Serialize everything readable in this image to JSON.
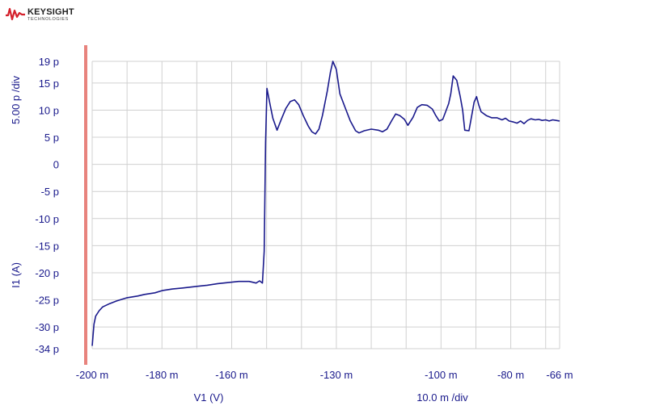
{
  "brand": {
    "name": "KEYSIGHT",
    "sub": "TECHNOLOGIES"
  },
  "chart_data": {
    "type": "line",
    "xlabel": "V1 (V)",
    "ylabel": "I1 (A)",
    "x_division": "10.0 m /div",
    "y_division": "5.00 p /div",
    "xlim": [
      -0.2,
      -0.066
    ],
    "ylim": [
      -3.4e-11,
      1.9e-11
    ],
    "grid": true,
    "x_ticks": [
      {
        "value": -0.2,
        "label": "-200 m"
      },
      {
        "value": -0.18,
        "label": "-180 m"
      },
      {
        "value": -0.16,
        "label": "-160 m"
      },
      {
        "value": -0.13,
        "label": "-130 m"
      },
      {
        "value": -0.1,
        "label": "-100 m"
      },
      {
        "value": -0.08,
        "label": "-80 m"
      },
      {
        "value": -0.066,
        "label": "-66 m"
      }
    ],
    "y_ticks": [
      {
        "value": 19,
        "label": "19 p"
      },
      {
        "value": 15,
        "label": "15 p"
      },
      {
        "value": 10,
        "label": "10 p"
      },
      {
        "value": 5,
        "label": "5 p"
      },
      {
        "value": 0,
        "label": "0"
      },
      {
        "value": -5,
        "label": "-5 p"
      },
      {
        "value": -10,
        "label": "-10 p"
      },
      {
        "value": -15,
        "label": "-15 p"
      },
      {
        "value": -20,
        "label": "-20 p"
      },
      {
        "value": -25,
        "label": "-25 p"
      },
      {
        "value": -30,
        "label": "-30 p"
      },
      {
        "value": -34,
        "label": "-34 p"
      }
    ],
    "series": [
      {
        "color": "#1a1a8c",
        "y_unit": "p",
        "points": [
          [
            -0.2,
            -33.5
          ],
          [
            -0.1995,
            -29.5
          ],
          [
            -0.199,
            -28.0
          ],
          [
            -0.198,
            -27.0
          ],
          [
            -0.197,
            -26.3
          ],
          [
            -0.195,
            -25.7
          ],
          [
            -0.193,
            -25.2
          ],
          [
            -0.19,
            -24.6
          ],
          [
            -0.187,
            -24.3
          ],
          [
            -0.185,
            -24.0
          ],
          [
            -0.182,
            -23.7
          ],
          [
            -0.18,
            -23.3
          ],
          [
            -0.177,
            -23.0
          ],
          [
            -0.174,
            -22.8
          ],
          [
            -0.17,
            -22.5
          ],
          [
            -0.167,
            -22.3
          ],
          [
            -0.164,
            -22.0
          ],
          [
            -0.161,
            -21.8
          ],
          [
            -0.158,
            -21.6
          ],
          [
            -0.155,
            -21.6
          ],
          [
            -0.153,
            -21.9
          ],
          [
            -0.152,
            -21.5
          ],
          [
            -0.1512,
            -21.9
          ],
          [
            -0.1507,
            -16.0
          ],
          [
            -0.1503,
            4.0
          ],
          [
            -0.1499,
            14.0
          ],
          [
            -0.149,
            11.0
          ],
          [
            -0.1482,
            8.5
          ],
          [
            -0.147,
            6.3
          ],
          [
            -0.1458,
            8.3
          ],
          [
            -0.1445,
            10.3
          ],
          [
            -0.1432,
            11.6
          ],
          [
            -0.142,
            11.9
          ],
          [
            -0.1408,
            11.0
          ],
          [
            -0.1395,
            9.0
          ],
          [
            -0.138,
            7.0
          ],
          [
            -0.137,
            6.0
          ],
          [
            -0.136,
            5.6
          ],
          [
            -0.135,
            6.5
          ],
          [
            -0.134,
            9.0
          ],
          [
            -0.1326,
            13.5
          ],
          [
            -0.1317,
            17.0
          ],
          [
            -0.131,
            19.0
          ],
          [
            -0.13,
            17.5
          ],
          [
            -0.129,
            13.0
          ],
          [
            -0.1275,
            10.5
          ],
          [
            -0.126,
            8.0
          ],
          [
            -0.1245,
            6.2
          ],
          [
            -0.1235,
            5.8
          ],
          [
            -0.122,
            6.2
          ],
          [
            -0.12,
            6.5
          ],
          [
            -0.118,
            6.3
          ],
          [
            -0.1168,
            6.0
          ],
          [
            -0.1155,
            6.5
          ],
          [
            -0.1142,
            8.0
          ],
          [
            -0.113,
            9.3
          ],
          [
            -0.1118,
            9.0
          ],
          [
            -0.1105,
            8.3
          ],
          [
            -0.1095,
            7.2
          ],
          [
            -0.108,
            8.7
          ],
          [
            -0.1068,
            10.5
          ],
          [
            -0.1055,
            11.0
          ],
          [
            -0.104,
            10.9
          ],
          [
            -0.1025,
            10.2
          ],
          [
            -0.1015,
            9.0
          ],
          [
            -0.1005,
            8.0
          ],
          [
            -0.0995,
            8.3
          ],
          [
            -0.0985,
            10.0
          ],
          [
            -0.0978,
            11.2
          ],
          [
            -0.0972,
            13.0
          ],
          [
            -0.0965,
            16.3
          ],
          [
            -0.0955,
            15.5
          ],
          [
            -0.0945,
            12.5
          ],
          [
            -0.0938,
            10.0
          ],
          [
            -0.0932,
            6.3
          ],
          [
            -0.092,
            6.2
          ],
          [
            -0.0912,
            9.0
          ],
          [
            -0.0905,
            11.5
          ],
          [
            -0.0898,
            12.5
          ],
          [
            -0.0892,
            11.0
          ],
          [
            -0.0885,
            9.7
          ],
          [
            -0.087,
            9.0
          ],
          [
            -0.0855,
            8.6
          ],
          [
            -0.084,
            8.6
          ],
          [
            -0.0825,
            8.2
          ],
          [
            -0.0815,
            8.5
          ],
          [
            -0.0805,
            8.0
          ],
          [
            -0.0792,
            7.8
          ],
          [
            -0.0782,
            7.6
          ],
          [
            -0.0772,
            8.0
          ],
          [
            -0.0762,
            7.5
          ],
          [
            -0.0752,
            8.1
          ],
          [
            -0.0742,
            8.4
          ],
          [
            -0.073,
            8.2
          ],
          [
            -0.072,
            8.3
          ],
          [
            -0.071,
            8.1
          ],
          [
            -0.07,
            8.2
          ],
          [
            -0.069,
            8.0
          ],
          [
            -0.068,
            8.2
          ],
          [
            -0.067,
            8.1
          ],
          [
            -0.066,
            8.0
          ]
        ]
      }
    ]
  }
}
